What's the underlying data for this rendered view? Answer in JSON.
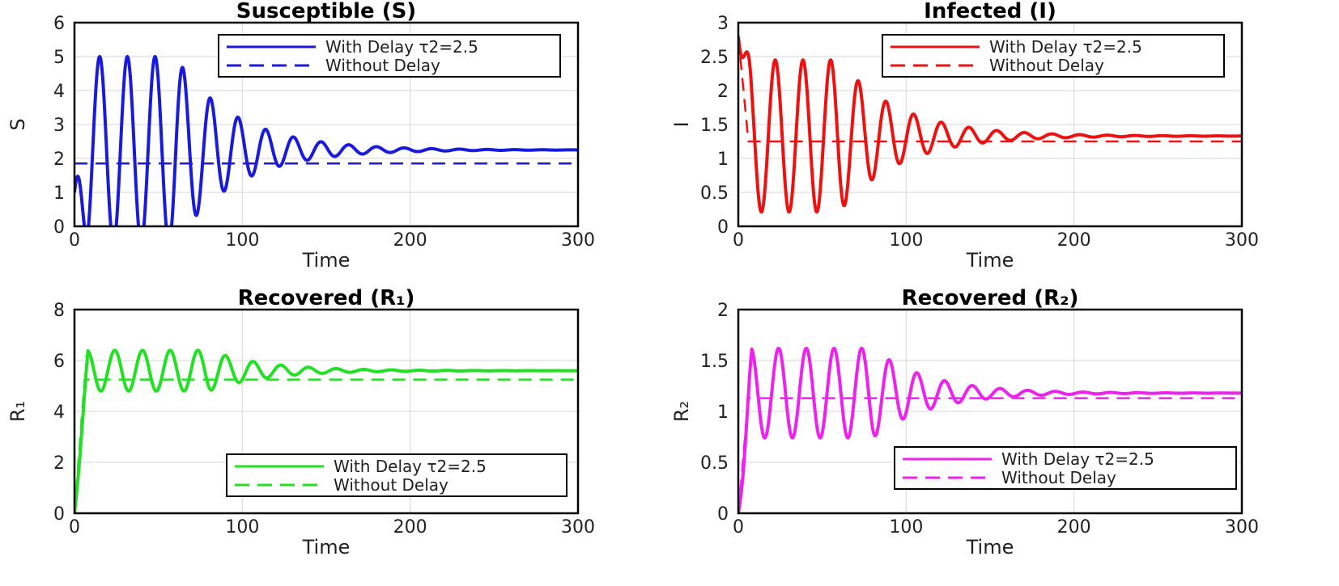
{
  "chart_data": [
    {
      "type": "line",
      "title": "Susceptible (S)",
      "xlabel": "Time",
      "ylabel": "S",
      "xlim": [
        0,
        300
      ],
      "ylim": [
        0,
        6
      ],
      "xticks": [
        "0",
        "100",
        "200",
        "300"
      ],
      "yticks": [
        "0",
        "1",
        "2",
        "3",
        "4",
        "5",
        "6"
      ],
      "grid": true,
      "legend_position": "top-right",
      "color": "#1a1adc",
      "series": [
        {
          "name": "With  Delay  τ2=2.5",
          "style": "solid",
          "base": 2.25,
          "amp": 2.75,
          "period": 16.5,
          "phase": 15,
          "decay_start": 60,
          "decay_rate": 0.028,
          "start": 1.0
        },
        {
          "name": "Without Delay",
          "style": "dashed",
          "value": 1.85,
          "start": 1.85
        }
      ],
      "legend_entries": [
        "With  Delay  τ2=2.5",
        "Without Delay"
      ]
    },
    {
      "type": "line",
      "title": "Infected (I)",
      "xlabel": "Time",
      "ylabel": "I",
      "xlim": [
        0,
        300
      ],
      "ylim": [
        0,
        3
      ],
      "xticks": [
        "0",
        "100",
        "200",
        "300"
      ],
      "yticks": [
        "0",
        "0.5",
        "1",
        "1.5",
        "2",
        "2.5",
        "3"
      ],
      "grid": true,
      "legend_position": "top-right",
      "color": "#ee1111",
      "series": [
        {
          "name": "With  Delay  τ2=2.5",
          "style": "solid",
          "base": 1.33,
          "amp": 1.12,
          "period": 16.5,
          "phase": 22,
          "decay_start": 60,
          "decay_rate": 0.028,
          "start": 2.8
        },
        {
          "name": "Without Delay",
          "style": "dashed",
          "value": 1.25,
          "start": 2.8
        }
      ],
      "legend_entries": [
        "With  Delay  τ2=2.5",
        "Without Delay"
      ]
    },
    {
      "type": "line",
      "title": "Recovered  (R₁)",
      "xlabel": "Time",
      "ylabel": "R₁",
      "xlim": [
        0,
        300
      ],
      "ylim": [
        0,
        8
      ],
      "xticks": [
        "0",
        "100",
        "200",
        "300"
      ],
      "yticks": [
        "0",
        "2",
        "4",
        "6",
        "8"
      ],
      "grid": true,
      "legend_position": "bottom-right",
      "color": "#22e022",
      "series": [
        {
          "name": "With  Delay  τ2=2.5",
          "style": "solid",
          "base": 5.6,
          "amp": 0.8,
          "period": 16.5,
          "phase": 24,
          "decay_start": 80,
          "decay_rate": 0.03,
          "start": 0
        },
        {
          "name": "Without Delay",
          "style": "dashed",
          "value": 5.25,
          "start": 0
        }
      ],
      "legend_entries": [
        "With  Delay  τ2=2.5",
        "Without Delay"
      ]
    },
    {
      "type": "line",
      "title": "Recovered  (R₂)",
      "xlabel": "Time",
      "ylabel": "R₂",
      "xlim": [
        0,
        300
      ],
      "ylim": [
        0,
        2
      ],
      "xticks": [
        "0",
        "100",
        "200",
        "300"
      ],
      "yticks": [
        "0",
        "0.5",
        "1",
        "1.5",
        "2"
      ],
      "grid": true,
      "legend_position": "bottom-right",
      "color": "#ee22ee",
      "series": [
        {
          "name": "With  Delay  τ2=2.5",
          "style": "solid",
          "base": 1.18,
          "amp": 0.44,
          "period": 16.5,
          "phase": 24,
          "decay_start": 80,
          "decay_rate": 0.03,
          "start": 0
        },
        {
          "name": "Without Delay",
          "style": "dashed",
          "value": 1.13,
          "start": 0
        }
      ],
      "legend_entries": [
        "With  Delay  τ2=2.5",
        "Without Delay"
      ]
    }
  ]
}
